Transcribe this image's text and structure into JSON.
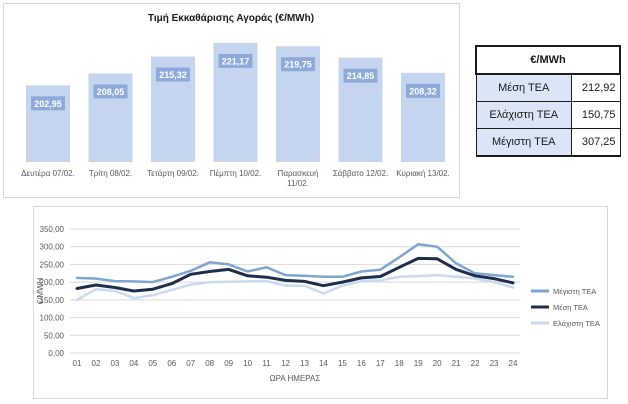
{
  "chart_data": [
    {
      "type": "bar",
      "title": "Τιμή Εκκαθάρισης Αγοράς (€/MWh)",
      "categories": [
        "Δευτέρα 07/02.",
        "Τρίτη 08/02.",
        "Τετάρτη 09/02.",
        "Πέμπτη 10/02.",
        "Παρασκευή 11/02.",
        "Σάββατο 12/02.",
        "Κυριακή 13/02."
      ],
      "values": [
        202.95,
        208.05,
        215.32,
        221.17,
        219.75,
        214.85,
        208.32
      ],
      "value_labels": [
        "202,95",
        "208,05",
        "215,32",
        "221,17",
        "219,75",
        "214,85",
        "208,32"
      ],
      "bar_color": "#c5d5ef",
      "label_bg": "#8eaadb",
      "ylim": [
        170,
        225
      ]
    },
    {
      "type": "line",
      "xlabel": "ΩΡΑ ΗΜΕΡΑΣ",
      "ylabel": "€/MWH",
      "ylim": [
        0,
        350
      ],
      "yticks": [
        "0,00",
        "50,00",
        "100,00",
        "150,00",
        "200,00",
        "250,00",
        "300,00",
        "350,00"
      ],
      "x": [
        "01",
        "02",
        "03",
        "04",
        "05",
        "06",
        "07",
        "08",
        "09",
        "10",
        "11",
        "12",
        "13",
        "14",
        "15",
        "16",
        "17",
        "18",
        "19",
        "20",
        "21",
        "22",
        "23",
        "24"
      ],
      "grid": true,
      "legend_position": "right",
      "series": [
        {
          "name": "Μέγιστη ΤΕΑ",
          "color": "#7fa6d1",
          "values": [
            212,
            210,
            203,
            202,
            200,
            215,
            232,
            256,
            250,
            230,
            242,
            220,
            218,
            215,
            215,
            230,
            235,
            270,
            307,
            300,
            253,
            225,
            220,
            215
          ]
        },
        {
          "name": "Μέση ΤΕΑ",
          "color": "#1e2f4d",
          "values": [
            182,
            192,
            185,
            175,
            180,
            196,
            222,
            230,
            236,
            218,
            214,
            205,
            202,
            190,
            200,
            212,
            216,
            242,
            267,
            266,
            236,
            218,
            210,
            198
          ]
        },
        {
          "name": "Ελάχιστη ΤΕΑ",
          "color": "#c9dbf1",
          "values": [
            150,
            180,
            175,
            155,
            163,
            178,
            193,
            200,
            201,
            202,
            203,
            190,
            190,
            168,
            190,
            203,
            205,
            215,
            217,
            220,
            215,
            210,
            200,
            185
          ]
        }
      ]
    }
  ],
  "stats_table": {
    "header": "€/MWh",
    "rows": [
      {
        "label": "Μέση ΤΕΑ",
        "value": "212,92"
      },
      {
        "label": "Ελάχιστη ΤΕΑ",
        "value": "150,75"
      },
      {
        "label": "Μέγιστη ΤΕΑ",
        "value": "307,25"
      }
    ]
  }
}
